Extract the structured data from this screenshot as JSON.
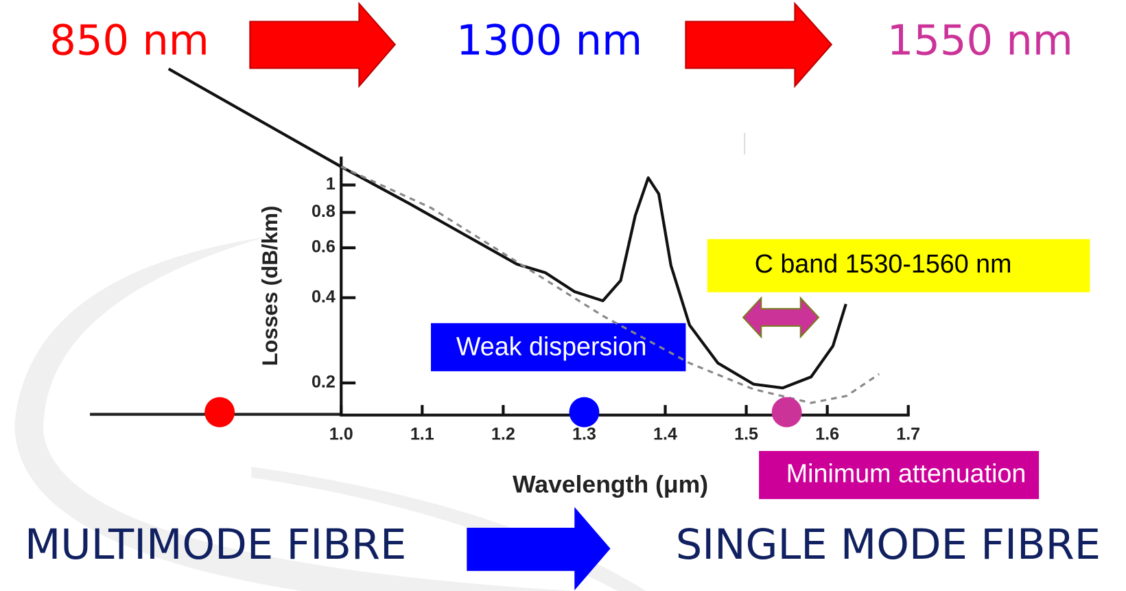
{
  "slide": {
    "top_labels": [
      "850 nm",
      "1300 nm",
      "1550 nm"
    ],
    "left_bottom": "MULTIMODE FIBRE",
    "right_bottom": "SINGLE MODE FIBRE",
    "weak_dispersion": "Weak dispersion",
    "c_band": "C band 1530-1560 nm",
    "min_attenuation": "Minimum attenuation"
  },
  "chart_data": {
    "type": "line",
    "x_label": "Wavelength (μm)",
    "y_label": "Losses (dB/km)",
    "xlim": [
      1.0,
      1.7
    ],
    "xticks": [
      {
        "value": 1.0,
        "label": "1.0"
      },
      1.1,
      1.2,
      1.3,
      1.4,
      1.5,
      1.6,
      1.7
    ],
    "ylim": [
      0.154,
      1.26
    ],
    "yticks": [
      0.2,
      0.4,
      0.6,
      0.8,
      1
    ],
    "log_y": true,
    "series": [
      {
        "color": "#111111",
        "dashed": false,
        "x": [
          0.787,
          1.0,
          1.084,
          1.217,
          1.252,
          1.288,
          1.323,
          1.345,
          1.363,
          1.379,
          1.392,
          1.407,
          1.43,
          1.465,
          1.509,
          1.545,
          1.58,
          1.607,
          1.623
        ],
        "values": [
          2.57,
          1.16,
          0.86,
          0.525,
          0.49,
          0.42,
          0.39,
          0.46,
          0.78,
          1.06,
          0.93,
          0.52,
          0.32,
          0.235,
          0.198,
          0.192,
          0.21,
          0.27,
          0.38
        ]
      },
      {
        "color": "#888888",
        "dashed": true,
        "x": [
          1.0,
          1.111,
          1.217,
          1.323,
          1.43,
          1.509,
          1.58,
          1.624,
          1.664
        ],
        "values": [
          1.16,
          0.83,
          0.535,
          0.345,
          0.235,
          0.19,
          0.17,
          0.18,
          0.215
        ]
      }
    ],
    "markers": [
      {
        "x": 0.85,
        "color": "#ff0000"
      },
      {
        "x": 1.3,
        "color": "#0000ff"
      },
      {
        "x": 1.55,
        "color": "#cc3399"
      }
    ]
  }
}
